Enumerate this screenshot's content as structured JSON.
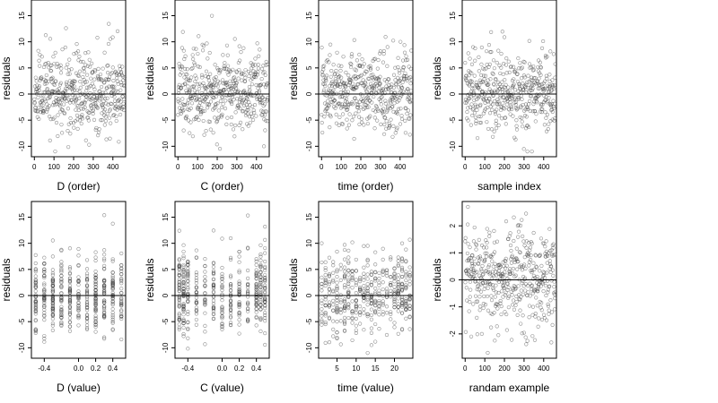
{
  "figure": {
    "description_panels": 8,
    "point_color": "#333333",
    "zero_line_color": "#000000"
  },
  "chart_data": [
    {
      "type": "scatter",
      "xlabel": "D (order)",
      "ylabel": "residuals",
      "xticks": [
        0,
        100,
        200,
        300,
        400
      ],
      "yticks": [
        -10,
        -5,
        0,
        5,
        10,
        15
      ],
      "xlim": [
        -15,
        465
      ],
      "ylim": [
        -12,
        18
      ],
      "hline": 0,
      "n_points": 460,
      "pattern": "index",
      "seed": 11
    },
    {
      "type": "scatter",
      "xlabel": "C (order)",
      "ylabel": "residuals",
      "xticks": [
        0,
        100,
        200,
        300,
        400
      ],
      "yticks": [
        -10,
        -5,
        0,
        5,
        10,
        15
      ],
      "xlim": [
        -15,
        465
      ],
      "ylim": [
        -12,
        18
      ],
      "hline": 0,
      "n_points": 460,
      "pattern": "index",
      "seed": 23
    },
    {
      "type": "scatter",
      "xlabel": "time (order)",
      "ylabel": "residuals",
      "xticks": [
        0,
        100,
        200,
        300,
        400
      ],
      "yticks": [
        -10,
        -5,
        0,
        5,
        10,
        15
      ],
      "xlim": [
        -15,
        465
      ],
      "ylim": [
        -12,
        18
      ],
      "hline": 0,
      "n_points": 460,
      "pattern": "index",
      "seed": 37
    },
    {
      "type": "scatter",
      "xlabel": "sample index",
      "ylabel": "residuals",
      "xticks": [
        0,
        100,
        200,
        300,
        400
      ],
      "yticks": [
        -10,
        -5,
        0,
        5,
        10,
        15
      ],
      "xlim": [
        -15,
        465
      ],
      "ylim": [
        -12,
        18
      ],
      "hline": 0,
      "n_points": 460,
      "pattern": "index",
      "seed": 41
    },
    {
      "type": "scatter",
      "xlabel": "D (value)",
      "ylabel": "residuals",
      "xticks": [
        -0.4,
        0,
        0.2,
        0.4
      ],
      "xtick_labels": [
        "-0.4",
        "0.0",
        "0.2",
        "0.4"
      ],
      "yticks": [
        -10,
        -5,
        0,
        5,
        10,
        15
      ],
      "xlim": [
        -0.55,
        0.55
      ],
      "ylim": [
        -12,
        18
      ],
      "hline": 0,
      "n_points": 460,
      "pattern": "discrete",
      "levels": [
        -0.5,
        -0.4,
        -0.3,
        -0.2,
        -0.1,
        0.0,
        0.1,
        0.2,
        0.3,
        0.4,
        0.5
      ],
      "seed": 53
    },
    {
      "type": "scatter",
      "xlabel": "C (value)",
      "ylabel": "residuals",
      "xticks": [
        -0.4,
        0,
        0.2,
        0.4
      ],
      "xtick_labels": [
        "-0.4",
        "0.0",
        "0.2",
        "0.4"
      ],
      "yticks": [
        -10,
        -5,
        0,
        5,
        10,
        15
      ],
      "xlim": [
        -0.55,
        0.55
      ],
      "ylim": [
        -12,
        18
      ],
      "hline": 0,
      "n_points": 460,
      "pattern": "discrete",
      "levels": [
        -0.5,
        -0.45,
        -0.4,
        -0.3,
        -0.2,
        -0.1,
        0.0,
        0.1,
        0.2,
        0.3,
        0.4,
        0.45,
        0.5
      ],
      "seed": 67
    },
    {
      "type": "scatter",
      "xlabel": "time (value)",
      "ylabel": "residuals",
      "xticks": [
        5,
        10,
        15,
        20
      ],
      "yticks": [
        -10,
        -5,
        0,
        5,
        10,
        15
      ],
      "xlim": [
        0.2,
        24.8
      ],
      "ylim": [
        -12,
        18
      ],
      "hline": 0,
      "n_points": 460,
      "pattern": "discrete",
      "levels": [
        1,
        2,
        3,
        4,
        5,
        6,
        7,
        8,
        9,
        10,
        11,
        12,
        13,
        14,
        15,
        16,
        17,
        18,
        19,
        20,
        21,
        22,
        23,
        24
      ],
      "seed": 79
    },
    {
      "type": "scatter",
      "xlabel": "randam example",
      "ylabel": "residuals",
      "xticks": [
        0,
        100,
        200,
        300,
        400
      ],
      "yticks": [
        -2,
        -1,
        0,
        1,
        2
      ],
      "xlim": [
        -15,
        465
      ],
      "ylim": [
        -2.9,
        2.9
      ],
      "hline": 0,
      "n_points": 460,
      "pattern": "normal",
      "seed": 97
    }
  ]
}
